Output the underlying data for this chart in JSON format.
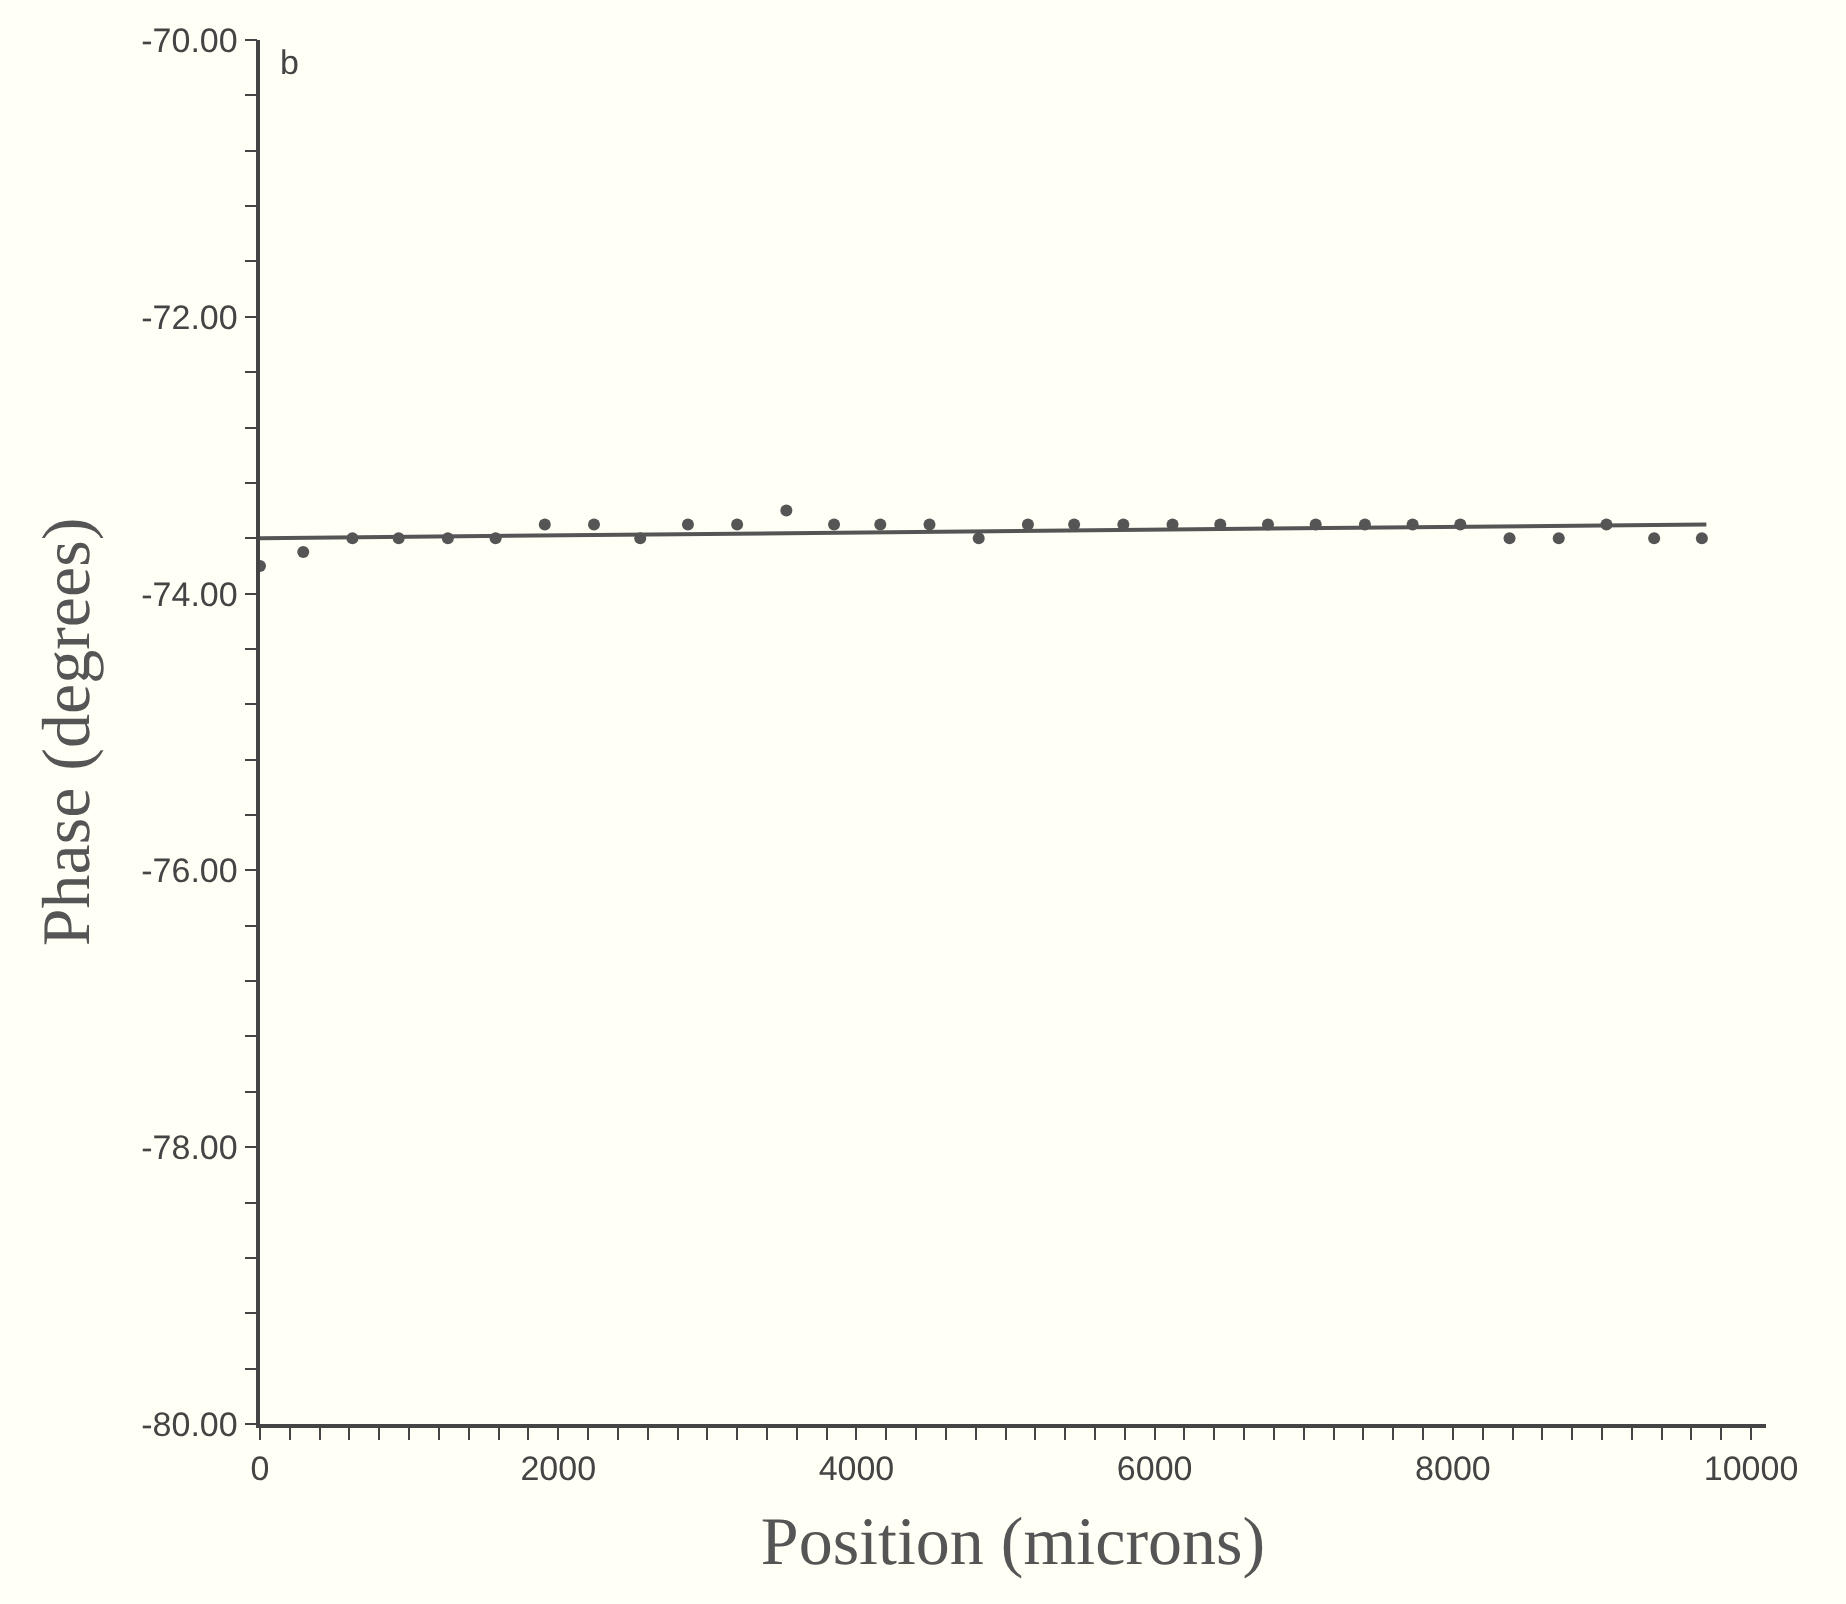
{
  "chart_data": {
    "type": "scatter",
    "xlabel": "Position (microns)",
    "ylabel": "Phase (degrees)",
    "annotations": [
      "b"
    ],
    "marker": "circle",
    "grid": false,
    "xlim": [
      0,
      10100
    ],
    "ylim": [
      -80,
      -70
    ],
    "xticks": [
      0,
      {
        "value": 200,
        "label": null
      },
      {
        "value": 400,
        "label": null
      },
      {
        "value": 600,
        "label": null
      },
      {
        "value": 800,
        "label": null
      },
      {
        "value": 1000,
        "label": null
      },
      {
        "value": 1200,
        "label": null
      },
      {
        "value": 1400,
        "label": null
      },
      {
        "value": 1600,
        "label": null
      },
      {
        "value": 1800,
        "label": null
      },
      2000,
      {
        "value": 2200,
        "label": null
      },
      {
        "value": 2400,
        "label": null
      },
      {
        "value": 2600,
        "label": null
      },
      {
        "value": 2800,
        "label": null
      },
      {
        "value": 3000,
        "label": null
      },
      {
        "value": 3200,
        "label": null
      },
      {
        "value": 3400,
        "label": null
      },
      {
        "value": 3600,
        "label": null
      },
      {
        "value": 3800,
        "label": null
      },
      4000,
      {
        "value": 4200,
        "label": null
      },
      {
        "value": 4400,
        "label": null
      },
      {
        "value": 4600,
        "label": null
      },
      {
        "value": 4800,
        "label": null
      },
      {
        "value": 5000,
        "label": null
      },
      {
        "value": 5200,
        "label": null
      },
      {
        "value": 5400,
        "label": null
      },
      {
        "value": 5600,
        "label": null
      },
      {
        "value": 5800,
        "label": null
      },
      6000,
      {
        "value": 6200,
        "label": null
      },
      {
        "value": 6400,
        "label": null
      },
      {
        "value": 6600,
        "label": null
      },
      {
        "value": 6800,
        "label": null
      },
      {
        "value": 7000,
        "label": null
      },
      {
        "value": 7200,
        "label": null
      },
      {
        "value": 7400,
        "label": null
      },
      {
        "value": 7600,
        "label": null
      },
      {
        "value": 7800,
        "label": null
      },
      8000,
      {
        "value": 8200,
        "label": null
      },
      {
        "value": 8400,
        "label": null
      },
      {
        "value": 8600,
        "label": null
      },
      {
        "value": 8800,
        "label": null
      },
      {
        "value": 9000,
        "label": null
      },
      {
        "value": 9200,
        "label": null
      },
      {
        "value": 9400,
        "label": null
      },
      {
        "value": 9600,
        "label": null
      },
      {
        "value": 9800,
        "label": null
      },
      10000
    ],
    "yticks": [
      {
        "value": -80,
        "label": "-80.00"
      },
      {
        "value": -79.6,
        "label": null
      },
      {
        "value": -79.2,
        "label": null
      },
      {
        "value": -78.8,
        "label": null
      },
      {
        "value": -78.4,
        "label": null
      },
      {
        "value": -78,
        "label": "-78.00"
      },
      {
        "value": -77.6,
        "label": null
      },
      {
        "value": -77.2,
        "label": null
      },
      {
        "value": -76.8,
        "label": null
      },
      {
        "value": -76.4,
        "label": null
      },
      {
        "value": -76,
        "label": "-76.00"
      },
      {
        "value": -75.6,
        "label": null
      },
      {
        "value": -75.2,
        "label": null
      },
      {
        "value": -74.8,
        "label": null
      },
      {
        "value": -74.4,
        "label": null
      },
      {
        "value": -74,
        "label": "-74.00"
      },
      {
        "value": -73.6,
        "label": null
      },
      {
        "value": -73.2,
        "label": null
      },
      {
        "value": -72.8,
        "label": null
      },
      {
        "value": -72.4,
        "label": null
      },
      {
        "value": -72,
        "label": "-72.00"
      },
      {
        "value": -71.6,
        "label": null
      },
      {
        "value": -71.2,
        "label": null
      },
      {
        "value": -70.8,
        "label": null
      },
      {
        "value": -70.4,
        "label": null
      },
      {
        "value": -70,
        "label": "-70.00"
      }
    ],
    "series": [
      {
        "color": "#555555",
        "x": [
          0,
          290,
          620,
          930,
          1260,
          1580,
          1910,
          2240,
          2550,
          2870,
          3200,
          3530,
          3850,
          4160,
          4490,
          4820,
          5150,
          5460,
          5790,
          6120,
          6440,
          6760,
          7080,
          7410,
          7730,
          8050,
          8380,
          8710,
          9030,
          9350,
          9670
        ],
        "values": [
          -73.8,
          -73.7,
          -73.6,
          -73.6,
          -73.6,
          -73.6,
          -73.5,
          -73.5,
          -73.6,
          -73.5,
          -73.5,
          -73.4,
          -73.5,
          -73.5,
          -73.5,
          -73.6,
          -73.5,
          -73.5,
          -73.5,
          -73.5,
          -73.5,
          -73.5,
          -73.5,
          -73.5,
          -73.5,
          -73.5,
          -73.6,
          -73.6,
          -73.5,
          -73.6,
          -73.6
        ]
      },
      {
        "type": "line",
        "marker": "none",
        "color": "#555555",
        "x": [
          0,
          9700
        ],
        "values": [
          -73.6,
          -73.5
        ]
      }
    ]
  }
}
